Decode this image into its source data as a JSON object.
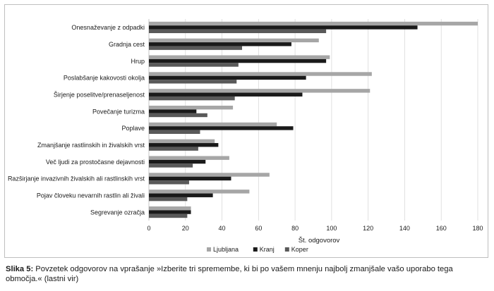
{
  "caption": {
    "label": "Slika 5:",
    "text": "Povzetek odgovorov na vprašanje »Izberite tri spremembe, ki bi po vašem mnenju najbolj zmanjšale vašo uporabo tega območja.« (lastni vir)"
  },
  "chart_data": {
    "type": "bar",
    "orientation": "horizontal",
    "title": "",
    "xlabel": "Št. odgovorov",
    "ylabel": "",
    "xlim": [
      0,
      180
    ],
    "xticks": [
      0,
      20,
      40,
      60,
      80,
      100,
      120,
      140,
      160,
      180
    ],
    "grid": true,
    "legend_position": "bottom",
    "categories": [
      "Onesnaževanje z odpadki",
      "Gradnja cest",
      "Hrup",
      "Poslabšanje kakovosti okolja",
      "Širjenje poselitve/prenaseljenost",
      "Povečanje turizma",
      "Poplave",
      "Zmanjšanje rastlinskih in živalskih vrst",
      "Več ljudi za prostočasne dejavnosti",
      "Razširjanje invazivnih živalskih ali rastlinskih vrst",
      "Pojav človeku nevarnih rastlin ali živali",
      "Segrevanje ozračja"
    ],
    "series": [
      {
        "name": "Ljubljana",
        "color": "#a6a6a6",
        "values": [
          180,
          93,
          99,
          122,
          121,
          46,
          70,
          36,
          44,
          66,
          55,
          23
        ]
      },
      {
        "name": "Kranj",
        "color": "#1a1a1a",
        "values": [
          147,
          78,
          97,
          86,
          84,
          26,
          79,
          38,
          31,
          45,
          35,
          23
        ]
      },
      {
        "name": "Koper",
        "color": "#595959",
        "values": [
          97,
          51,
          49,
          48,
          47,
          32,
          28,
          27,
          24,
          22,
          21,
          21
        ]
      }
    ]
  }
}
